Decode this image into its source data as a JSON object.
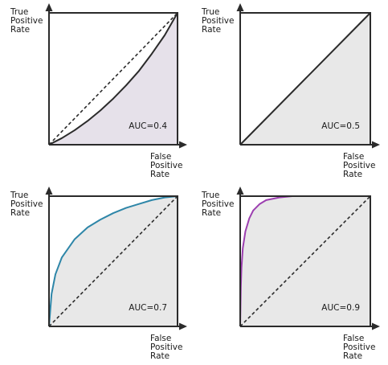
{
  "chart_data": [
    {
      "type": "area",
      "xlabel": "False Positive Rate",
      "ylabel": "True Positive Rate",
      "xlim": [
        0,
        1
      ],
      "ylim": [
        0,
        1
      ],
      "auc_label": "AUC=0.4",
      "auc": 0.4,
      "curve_color": "#2b2b2b",
      "fill_color": "#e6e1ea",
      "curve_x": [
        0,
        0.1,
        0.2,
        0.3,
        0.4,
        0.5,
        0.6,
        0.7,
        0.8,
        0.9,
        1.0
      ],
      "curve_y": [
        0,
        0.05,
        0.11,
        0.18,
        0.26,
        0.35,
        0.45,
        0.56,
        0.69,
        0.83,
        1.0
      ],
      "diagonal": [
        [
          0,
          0
        ],
        [
          1,
          1
        ]
      ]
    },
    {
      "type": "area",
      "xlabel": "False Positive Rate",
      "ylabel": "True Positive Rate",
      "xlim": [
        0,
        1
      ],
      "ylim": [
        0,
        1
      ],
      "auc_label": "AUC=0.5",
      "auc": 0.5,
      "curve_color": "#2b2b2b",
      "fill_color": "#e8e8e8",
      "curve_x": [
        0,
        1.0
      ],
      "curve_y": [
        0,
        1.0
      ],
      "diagonal": [
        [
          0,
          0
        ],
        [
          1,
          1
        ]
      ]
    },
    {
      "type": "area",
      "xlabel": "False Positive Rate",
      "ylabel": "True Positive Rate",
      "xlim": [
        0,
        1
      ],
      "ylim": [
        0,
        1
      ],
      "auc_label": "AUC=0.7",
      "auc": 0.7,
      "curve_color": "#2e86a8",
      "fill_color": "#e8e8e8",
      "curve_x": [
        0,
        0.02,
        0.05,
        0.1,
        0.2,
        0.3,
        0.4,
        0.5,
        0.6,
        0.7,
        0.8,
        0.9,
        1.0
      ],
      "curve_y": [
        0,
        0.25,
        0.4,
        0.53,
        0.67,
        0.76,
        0.82,
        0.87,
        0.91,
        0.94,
        0.97,
        0.99,
        1.0
      ],
      "diagonal": [
        [
          0,
          0
        ],
        [
          1,
          1
        ]
      ]
    },
    {
      "type": "area",
      "xlabel": "False Positive Rate",
      "ylabel": "True Positive Rate",
      "xlim": [
        0,
        1
      ],
      "ylim": [
        0,
        1
      ],
      "auc_label": "AUC=0.9",
      "auc": 0.9,
      "curve_color": "#9c3fb0",
      "fill_color": "#e8e8e8",
      "curve_x": [
        0,
        0.005,
        0.01,
        0.02,
        0.04,
        0.07,
        0.1,
        0.15,
        0.2,
        0.3,
        0.4,
        0.5,
        0.6,
        0.8,
        1.0
      ],
      "curve_y": [
        0,
        0.3,
        0.45,
        0.6,
        0.73,
        0.83,
        0.89,
        0.94,
        0.97,
        0.99,
        1.0,
        1.0,
        1.0,
        1.0,
        1.0
      ],
      "diagonal": [
        [
          0,
          0
        ],
        [
          1,
          1
        ]
      ]
    }
  ]
}
